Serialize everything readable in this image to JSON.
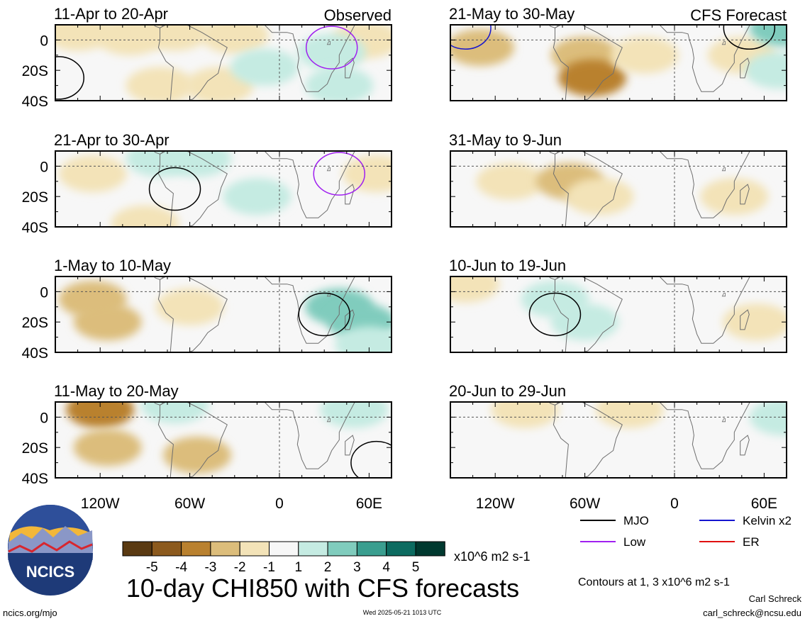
{
  "chart_data": {
    "type": "heatmap",
    "title": "10-day CHI850 with CFS forecasts",
    "observed_label": "Observed",
    "forecast_label": "CFS Forecast",
    "x_ticks": [
      "120W",
      "60W",
      "0",
      "60E"
    ],
    "y_ticks": [
      "0",
      "20S",
      "40S"
    ],
    "lon_range": [
      -150,
      75
    ],
    "lat_range": [
      -40,
      10
    ],
    "grid": "dashed lines at 0 latitude and 0 longitude",
    "panels": [
      {
        "period": "11-Apr to 20-Apr",
        "type": "observed",
        "anomalies": [
          {
            "lon": -135,
            "lat": 5,
            "value": -1
          },
          {
            "lon": -100,
            "lat": 2,
            "value": -1
          },
          {
            "lon": -70,
            "lat": 5,
            "value": -1
          },
          {
            "lon": -30,
            "lat": 3,
            "value": -1
          },
          {
            "lon": -80,
            "lat": -30,
            "value": -1
          },
          {
            "lon": -40,
            "lat": -30,
            "value": -1
          },
          {
            "lon": 58,
            "lat": 0,
            "value": -1
          },
          {
            "lon": -10,
            "lat": -18,
            "value": 1
          },
          {
            "lon": 35,
            "lat": -8,
            "value": 1
          },
          {
            "lon": 40,
            "lat": -30,
            "value": 1
          }
        ],
        "contours": [
          {
            "type": "Low",
            "lon": 35,
            "lat": -5
          },
          {
            "type": "MJO",
            "lon": -148,
            "lat": -25
          }
        ]
      },
      {
        "period": "21-Apr to 30-Apr",
        "type": "observed",
        "anomalies": [
          {
            "lon": -125,
            "lat": -5,
            "value": -1
          },
          {
            "lon": -90,
            "lat": -38,
            "value": -1
          },
          {
            "lon": 65,
            "lat": -5,
            "value": -1
          },
          {
            "lon": -80,
            "lat": 5,
            "value": 1
          },
          {
            "lon": -55,
            "lat": 5,
            "value": 1
          },
          {
            "lon": -15,
            "lat": -20,
            "value": 1
          }
        ],
        "contours": [
          {
            "type": "Low",
            "lon": 40,
            "lat": -5
          },
          {
            "type": "MJO",
            "lon": -70,
            "lat": -15
          }
        ]
      },
      {
        "period": "1-May to 10-May",
        "type": "observed",
        "anomalies": [
          {
            "lon": -125,
            "lat": -5,
            "value": -2
          },
          {
            "lon": -115,
            "lat": -20,
            "value": -2
          },
          {
            "lon": -60,
            "lat": -10,
            "value": -1
          },
          {
            "lon": 40,
            "lat": -10,
            "value": 2
          },
          {
            "lon": 55,
            "lat": -20,
            "value": 2
          },
          {
            "lon": 60,
            "lat": -35,
            "value": 1
          }
        ],
        "contours": [
          {
            "type": "MJO",
            "lon": 30,
            "lat": -15
          }
        ]
      },
      {
        "period": "11-May to 20-May",
        "type": "observed",
        "anomalies": [
          {
            "lon": -120,
            "lat": 5,
            "value": -3
          },
          {
            "lon": -115,
            "lat": -20,
            "value": -2
          },
          {
            "lon": -55,
            "lat": -25,
            "value": -2
          },
          {
            "lon": -70,
            "lat": 8,
            "value": 1
          },
          {
            "lon": 50,
            "lat": 5,
            "value": 1
          }
        ],
        "contours": [
          {
            "type": "MJO",
            "lon": 65,
            "lat": -30
          }
        ]
      },
      {
        "period": "21-May to 30-May",
        "type": "forecast",
        "anomalies": [
          {
            "lon": -130,
            "lat": -5,
            "value": -2
          },
          {
            "lon": -60,
            "lat": -10,
            "value": -2
          },
          {
            "lon": -55,
            "lat": -25,
            "value": -3
          },
          {
            "lon": -20,
            "lat": -10,
            "value": -1
          },
          {
            "lon": 45,
            "lat": -10,
            "value": -1
          },
          {
            "lon": 70,
            "lat": -20,
            "value": 1
          },
          {
            "lon": 73,
            "lat": 8,
            "value": 2
          }
        ],
        "contours": [
          {
            "type": "Kelvin x2",
            "lon": -140,
            "lat": 8
          },
          {
            "type": "MJO",
            "lon": 50,
            "lat": 8
          }
        ]
      },
      {
        "period": "31-May to 9-Jun",
        "type": "forecast",
        "anomalies": [
          {
            "lon": -110,
            "lat": -10,
            "value": -1
          },
          {
            "lon": -70,
            "lat": -10,
            "value": -2
          },
          {
            "lon": -50,
            "lat": -20,
            "value": -1
          },
          {
            "lon": 40,
            "lat": -20,
            "value": -1
          }
        ],
        "contours": []
      },
      {
        "period": "10-Jun to 19-Jun",
        "type": "forecast",
        "anomalies": [
          {
            "lon": -140,
            "lat": 5,
            "value": -1
          },
          {
            "lon": -80,
            "lat": -5,
            "value": 1
          },
          {
            "lon": -60,
            "lat": -20,
            "value": 1
          },
          {
            "lon": 55,
            "lat": -20,
            "value": -1
          }
        ],
        "contours": [
          {
            "type": "MJO",
            "lon": -80,
            "lat": -15
          }
        ]
      },
      {
        "period": "20-Jun to 29-Jun",
        "type": "forecast",
        "anomalies": [
          {
            "lon": -100,
            "lat": 5,
            "value": -1
          },
          {
            "lon": -30,
            "lat": 5,
            "value": -1
          },
          {
            "lon": 73,
            "lat": 0,
            "value": 1
          }
        ],
        "contours": []
      }
    ],
    "colorbar": {
      "tick_labels": [
        "-5",
        "-4",
        "-3",
        "-2",
        "-1",
        "1",
        "2",
        "3",
        "4",
        "5"
      ],
      "colors": [
        "#5a3a12",
        "#8c5a1e",
        "#b9812f",
        "#dcbd7b",
        "#f3e3b8",
        "#f7f7f7",
        "#c5ebe2",
        "#80ccbd",
        "#3a9e8f",
        "#0c6b60",
        "#00392f"
      ],
      "units": "x10^6 m2 s-1"
    },
    "legend": [
      {
        "label": "MJO",
        "color": "#000000"
      },
      {
        "label": "Kelvin x2",
        "color": "#1515cf"
      },
      {
        "label": "Low",
        "color": "#a020f0"
      },
      {
        "label": "ER",
        "color": "#e01010"
      }
    ],
    "contour_note": "Contours at 1, 3 x10^6 m2 s-1"
  },
  "footer": {
    "logo_text": "NCICS",
    "site": "ncics.org/mjo",
    "timestamp": "Wed 2025-05-21 1013 UTC",
    "author": "Carl Schreck",
    "email": "carl_schreck@ncsu.edu"
  }
}
